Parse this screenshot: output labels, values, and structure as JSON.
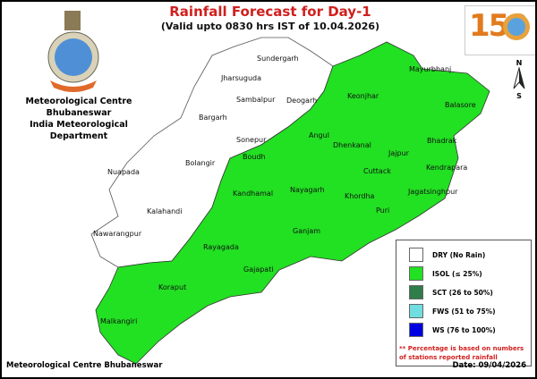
{
  "title": "Rainfall Forecast for Day-1",
  "subtitle": "(Valid upto 0830 hrs IST of 10.04.2026)",
  "org": {
    "line1": "Meteorological Centre Bhubaneswar",
    "line2": "India Meteorological Department"
  },
  "footer": "Meteorological Centre Bhubaneswar",
  "date": "Date: 09/04/2026",
  "north": {
    "n": "N",
    "s": "S"
  },
  "logo_text": "150",
  "legend": {
    "items": [
      {
        "label": "DRY (No Rain)",
        "color": "#ffffff"
      },
      {
        "label": "ISOL (≤ 25%)",
        "color": "#22e022"
      },
      {
        "label": "SCT (26 to 50%)",
        "color": "#2e7d4a"
      },
      {
        "label": "FWS (51 to 75%)",
        "color": "#70dde0"
      },
      {
        "label": "WS (76 to 100%)",
        "color": "#0000e0"
      }
    ],
    "note": "** Percentage is based on numbers of stations reported rainfall"
  },
  "districts": [
    {
      "name": "Sundergarh",
      "category": "DRY"
    },
    {
      "name": "Jharsuguda",
      "category": "DRY"
    },
    {
      "name": "Sambalpur",
      "category": "DRY"
    },
    {
      "name": "Deogarh",
      "category": "DRY"
    },
    {
      "name": "Bargarh",
      "category": "DRY"
    },
    {
      "name": "Sonepur",
      "category": "DRY"
    },
    {
      "name": "Bolangir",
      "category": "DRY"
    },
    {
      "name": "Nuapada",
      "category": "DRY"
    },
    {
      "name": "Kalahandi",
      "category": "DRY"
    },
    {
      "name": "Nawarangpur",
      "category": "DRY"
    },
    {
      "name": "Mayurbhanj",
      "category": "ISOL"
    },
    {
      "name": "Keonjhar",
      "category": "ISOL"
    },
    {
      "name": "Balasore",
      "category": "ISOL"
    },
    {
      "name": "Bhadrak",
      "category": "ISOL"
    },
    {
      "name": "Angul",
      "category": "ISOL"
    },
    {
      "name": "Dhenkanal",
      "category": "ISOL"
    },
    {
      "name": "Jajpur",
      "category": "ISOL"
    },
    {
      "name": "Kendrapara",
      "category": "ISOL"
    },
    {
      "name": "Boudh",
      "category": "ISOL"
    },
    {
      "name": "Cuttack",
      "category": "ISOL"
    },
    {
      "name": "Jagatsinghpur",
      "category": "ISOL"
    },
    {
      "name": "Kandhamal",
      "category": "ISOL"
    },
    {
      "name": "Nayagarh",
      "category": "ISOL"
    },
    {
      "name": "Khordha",
      "category": "ISOL"
    },
    {
      "name": "Puri",
      "category": "ISOL"
    },
    {
      "name": "Ganjam",
      "category": "ISOL"
    },
    {
      "name": "Rayagada",
      "category": "ISOL"
    },
    {
      "name": "Gajapati",
      "category": "ISOL"
    },
    {
      "name": "Koraput",
      "category": "ISOL"
    },
    {
      "name": "Malkangiri",
      "category": "ISOL"
    }
  ]
}
